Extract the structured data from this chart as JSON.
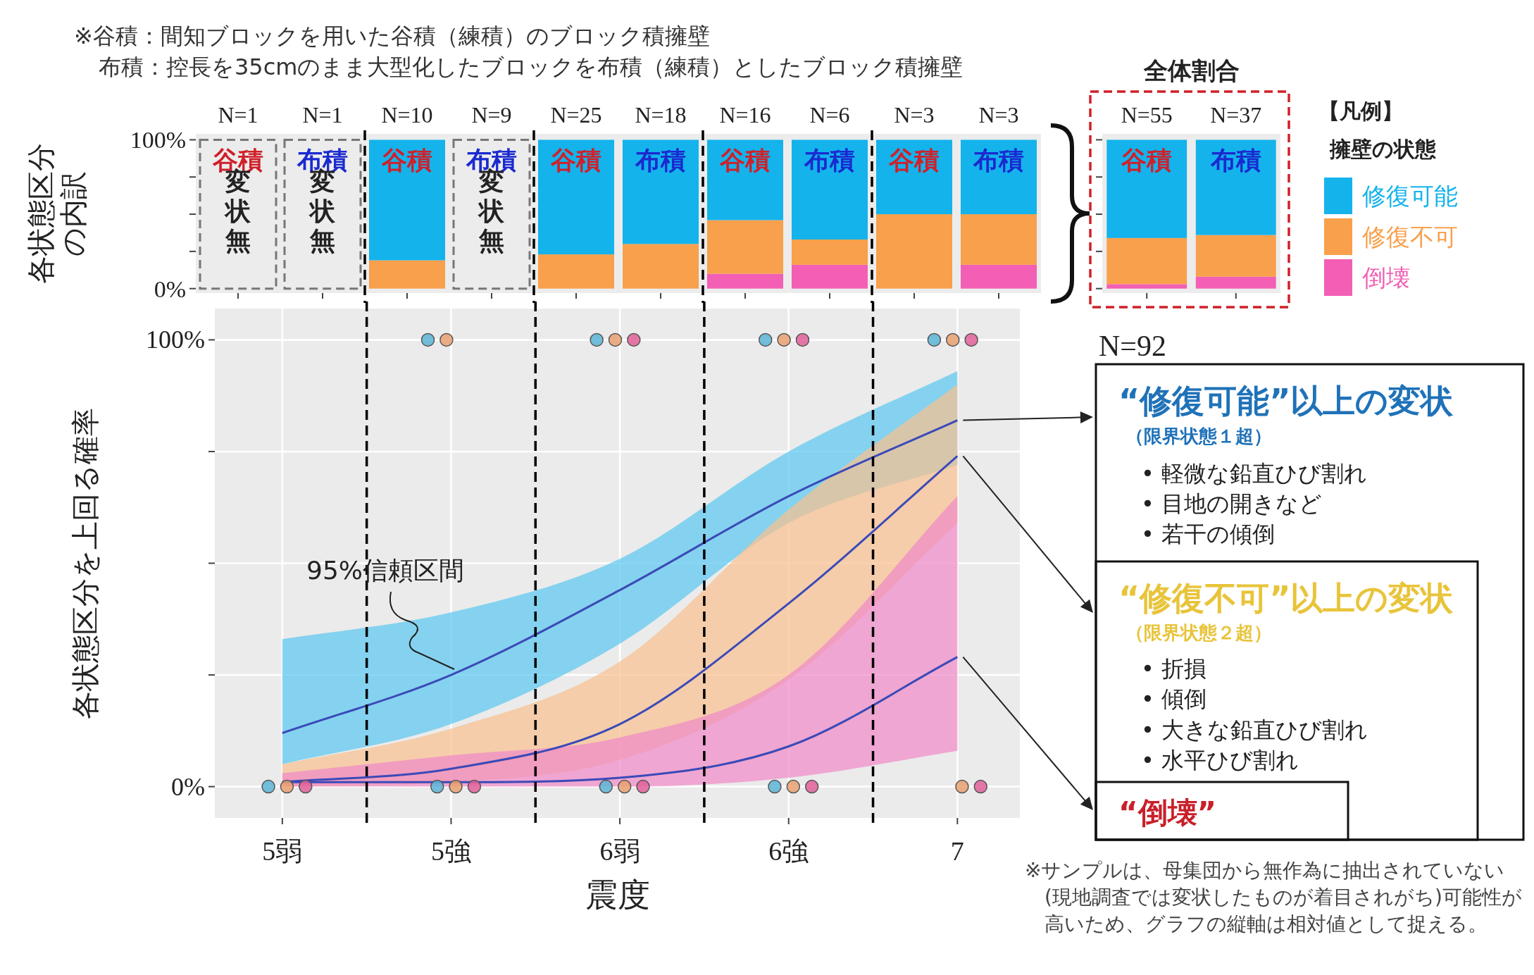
{
  "chart_data": [
    {
      "type": "bar",
      "stacked": true,
      "ylabel": "各状態区分の内訳",
      "categories": [
        "谷積",
        "布積",
        "谷積",
        "布積",
        "谷積",
        "布積",
        "谷積",
        "布積",
        "谷積",
        "布積"
      ],
      "series": [
        {
          "color": "#f25fb4",
          "values": [
            null,
            null,
            0,
            null,
            0,
            0,
            10,
            16,
            0,
            16
          ]
        },
        {
          "color": "#f8a04c",
          "values": [
            null,
            null,
            19,
            null,
            23,
            30,
            36,
            17,
            50,
            34
          ]
        },
        {
          "color": "#14b3ec",
          "values": [
            null,
            null,
            81,
            null,
            77,
            70,
            54,
            67,
            50,
            50
          ]
        }
      ],
      "ylim": [
        -3,
        104
      ],
      "yticks": [
        {
          "value": 0,
          "label": "0%"
        },
        {
          "value": 25,
          "label": null
        },
        {
          "value": 50,
          "label": null
        },
        {
          "value": 75,
          "label": null
        },
        {
          "value": 100,
          "label": "100%"
        }
      ],
      "tick_labels": "y",
      "annotations": [
        "※谷積：間知ブロックを用いた谷積（練積）のブロック積擁壁",
        "布積：控長を35cmのまま大型化したブロックを布積（練積）としたブロック積擁壁",
        "N=1",
        "N=1",
        "N=10",
        "N=9",
        "N=25",
        "N=18",
        "N=16",
        "N=6",
        "N=3",
        "N=3",
        "変状無",
        "変状無",
        "変状無"
      ]
    },
    {
      "type": "bar",
      "stacked": true,
      "title": "全体割合",
      "categories": [
        "谷積",
        "布積"
      ],
      "series": [
        {
          "name": "倒壊",
          "color": "#f25fb4",
          "values": [
            3,
            8
          ]
        },
        {
          "name": "修復不可",
          "color": "#f8a04c",
          "values": [
            31,
            28
          ]
        },
        {
          "name": "修復可能",
          "color": "#14b3ec",
          "values": [
            66,
            64
          ]
        }
      ],
      "ylim": [
        -3,
        104
      ],
      "yticks": [
        {
          "value": 0,
          "label": null
        },
        {
          "value": 25,
          "label": null
        },
        {
          "value": 50,
          "label": null
        },
        {
          "value": 75,
          "label": null
        },
        {
          "value": 100,
          "label": null
        }
      ],
      "tick_labels": false,
      "legend": "right",
      "legend_title": "擁壁の状態",
      "annotations": [
        "【凡例】",
        "N=55",
        "N=37"
      ]
    },
    {
      "type": "line",
      "xlabel": "震度",
      "ylabel": "各状態区分を上回る確率",
      "categories": [
        "5弱",
        "5強",
        "6弱",
        "6強",
        "7"
      ],
      "ylim": [
        -7,
        107
      ],
      "yticks": [
        {
          "value": 0,
          "label": "0%"
        },
        {
          "value": 25,
          "label": null
        },
        {
          "value": 50,
          "label": null
        },
        {
          "value": 75,
          "label": null
        },
        {
          "value": 100,
          "label": "100%"
        }
      ],
      "grid": true,
      "series": [
        {
          "color": "#3b4ab8",
          "values": [
            12,
            25,
            44,
            65,
            82
          ],
          "lower": [
            5,
            14,
            32,
            59,
            72
          ],
          "upper": [
            33,
            39,
            51,
            75,
            93
          ]
        },
        {
          "color": "#3b4ab8",
          "values": [
            1,
            4,
            14,
            41,
            74
          ],
          "lower": [
            0,
            1,
            6,
            24,
            59
          ],
          "upper": [
            5,
            13,
            28,
            62,
            90
          ]
        },
        {
          "color": "#3b4ab8",
          "values": [
            1,
            1,
            2,
            9,
            29
          ],
          "lower": [
            0,
            0,
            0,
            2,
            8
          ],
          "upper": [
            3,
            7,
            11,
            25,
            65
          ]
        },
        {
          "type": "scatter",
          "marker": "circle",
          "color": "#5ab4d6",
          "values": [
            null,
            100,
            100,
            100,
            100
          ]
        },
        {
          "type": "scatter",
          "marker": "circle",
          "color": "#5ab4d6",
          "values": [
            0,
            0,
            0,
            0,
            null
          ]
        },
        {
          "type": "scatter",
          "marker": "circle",
          "color": "#e9a070",
          "values": [
            null,
            100,
            100,
            100,
            100
          ]
        },
        {
          "type": "scatter",
          "marker": "circle",
          "color": "#e9a070",
          "values": [
            0,
            0,
            0,
            0,
            0
          ]
        },
        {
          "type": "scatter",
          "marker": "circle",
          "color": "#e0609a",
          "values": [
            null,
            null,
            100,
            100,
            100
          ]
        },
        {
          "type": "scatter",
          "marker": "circle",
          "color": "#e0609a",
          "values": [
            0,
            0,
            0,
            0,
            0
          ]
        }
      ],
      "annotations": [
        "95%信頼区間",
        "N=92",
        "“修復可能”以上の変状",
        "（限界状態１超）",
        "• 軽微な鉛直ひび割れ",
        "• 目地の開きなど",
        "• 若干の傾倒",
        "“修復不可”以上の変状",
        "（限界状態２超）",
        "• 折損",
        "• 傾倒",
        "• 大きな鉛直ひび割れ",
        "• 水平ひび割れ",
        "“倒壊”",
        "※サンプルは、母集団から無作為に抽出されていない(現地調査では変状したものが着目されがち)可能性が高いため、グラフの縦軸は相対値として捉える。"
      ]
    }
  ]
}
